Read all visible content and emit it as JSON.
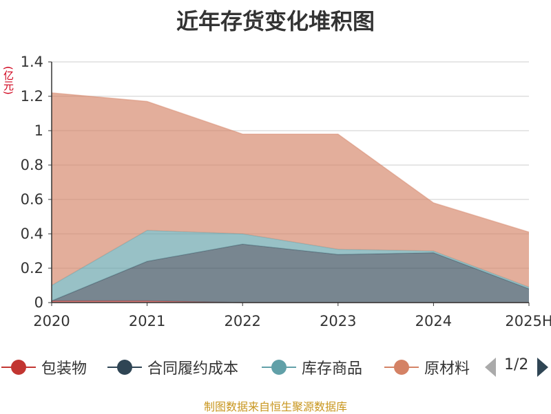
{
  "source": "制图数据来自恒生聚源数据库",
  "pager": {
    "text": "1/2"
  },
  "chart_data": {
    "type": "area",
    "stacked": true,
    "title": "近年存货变化堆积图",
    "unit": "(亿元)",
    "categories": [
      "2020",
      "2021",
      "2022",
      "2023",
      "2024",
      "2025H"
    ],
    "ylim": [
      0,
      1.4
    ],
    "yticks": [
      0,
      0.2,
      0.4,
      0.6,
      0.8,
      1,
      1.2,
      1.4
    ],
    "ytick_labels": [
      "0",
      "0.2",
      "0.4",
      "0.6",
      "0.8",
      "1",
      "1.2",
      "1.4"
    ],
    "grid": true,
    "legend_position": "bottom",
    "series": [
      {
        "name": "包装物",
        "color": "#c23531",
        "values": [
          0.01,
          0.01,
          0.0,
          0.0,
          0.0,
          0.0
        ]
      },
      {
        "name": "合同履约成本",
        "color": "#2f4554",
        "values": [
          0.0,
          0.23,
          0.34,
          0.28,
          0.29,
          0.08
        ]
      },
      {
        "name": "库存商品",
        "color": "#61a0a8",
        "values": [
          0.09,
          0.18,
          0.06,
          0.03,
          0.01,
          0.01
        ]
      },
      {
        "name": "原材料",
        "color": "#d48265",
        "values": [
          1.12,
          0.75,
          0.58,
          0.67,
          0.28,
          0.32
        ]
      }
    ]
  }
}
